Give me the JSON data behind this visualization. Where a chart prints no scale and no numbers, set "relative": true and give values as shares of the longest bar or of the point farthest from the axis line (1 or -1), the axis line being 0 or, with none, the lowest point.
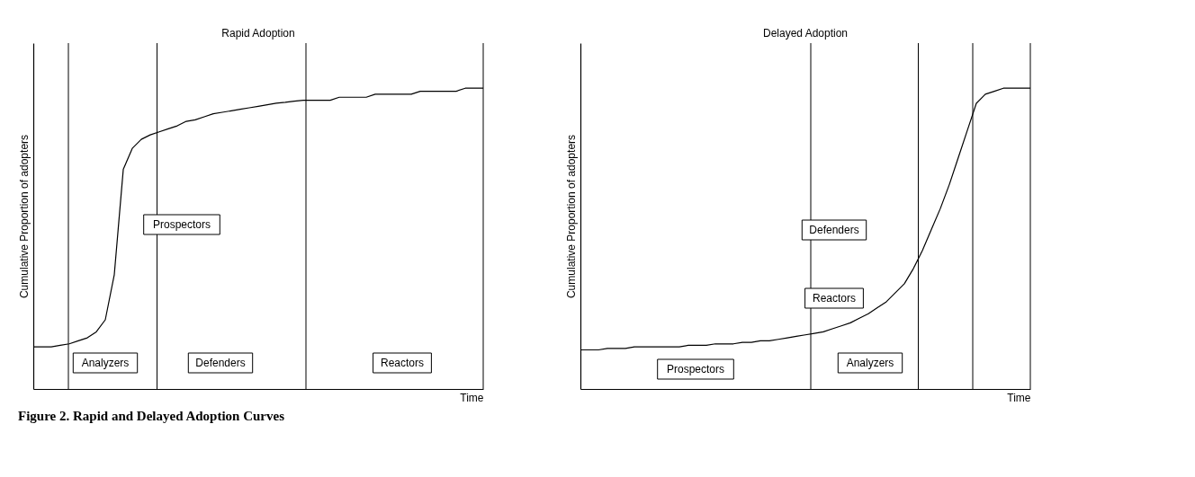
{
  "chart_data": [
    {
      "type": "line",
      "title": "Rapid Adoption",
      "xlabel": "Time",
      "ylabel": "Cumulative Proportion of adopters",
      "relative": true,
      "categories": [
        null,
        null,
        null,
        null,
        null,
        null,
        null,
        null,
        null,
        null,
        null,
        null,
        null,
        null,
        null,
        null,
        null,
        null,
        null,
        null,
        null,
        null,
        null,
        null,
        null,
        null,
        null,
        null,
        null,
        null,
        null,
        null,
        null,
        null,
        null,
        null,
        null,
        null,
        null,
        null,
        null,
        null,
        null,
        null,
        null,
        null,
        null,
        null,
        null,
        null,
        null
      ],
      "series": [
        {
          "color": "#000000",
          "values": [
            0.14,
            0.14,
            0.14,
            0.145,
            0.15,
            0.16,
            0.17,
            0.19,
            0.23,
            0.38,
            0.73,
            0.8,
            0.83,
            0.845,
            0.855,
            0.865,
            0.875,
            0.89,
            0.895,
            0.905,
            0.915,
            0.92,
            0.925,
            0.93,
            0.935,
            0.94,
            0.945,
            0.95,
            0.953,
            0.957,
            0.96,
            0.96,
            0.96,
            0.96,
            0.97,
            0.97,
            0.97,
            0.97,
            0.98,
            0.98,
            0.98,
            0.98,
            0.98,
            0.99,
            0.99,
            0.99,
            0.99,
            0.99,
            1.0,
            1.0,
            1.0
          ]
        }
      ],
      "line_style": "solid",
      "annotations": [
        "Prospectors",
        "Analyzers",
        "Defenders",
        "Reactors",
        "Figure 2. Rapid and Delayed Adoption Curves"
      ]
    },
    {
      "type": "line",
      "title": "Delayed Adoption",
      "xlabel": "Time",
      "ylabel": "Cumulative Proportion of adopters",
      "relative": true,
      "categories": [
        null,
        null,
        null,
        null,
        null,
        null,
        null,
        null,
        null,
        null,
        null,
        null,
        null,
        null,
        null,
        null,
        null,
        null,
        null,
        null,
        null,
        null,
        null,
        null,
        null,
        null,
        null,
        null,
        null,
        null,
        null,
        null,
        null,
        null,
        null,
        null,
        null,
        null,
        null,
        null,
        null,
        null,
        null,
        null,
        null,
        null,
        null,
        null,
        null,
        null,
        null
      ],
      "series": [
        {
          "color": "#000000",
          "values": [
            0.13,
            0.13,
            0.13,
            0.135,
            0.135,
            0.135,
            0.14,
            0.14,
            0.14,
            0.14,
            0.14,
            0.14,
            0.145,
            0.145,
            0.145,
            0.15,
            0.15,
            0.15,
            0.155,
            0.155,
            0.16,
            0.16,
            0.165,
            0.17,
            0.175,
            0.18,
            0.185,
            0.19,
            0.2,
            0.21,
            0.22,
            0.235,
            0.25,
            0.27,
            0.29,
            0.32,
            0.35,
            0.4,
            0.46,
            0.53,
            0.6,
            0.68,
            0.77,
            0.86,
            0.95,
            0.98,
            0.99,
            1.0,
            1.0,
            1.0,
            1.0
          ]
        }
      ],
      "line_style": "solid",
      "annotations": [
        "Prospectors",
        "Analyzers",
        "Defenders",
        "Reactors"
      ]
    }
  ]
}
